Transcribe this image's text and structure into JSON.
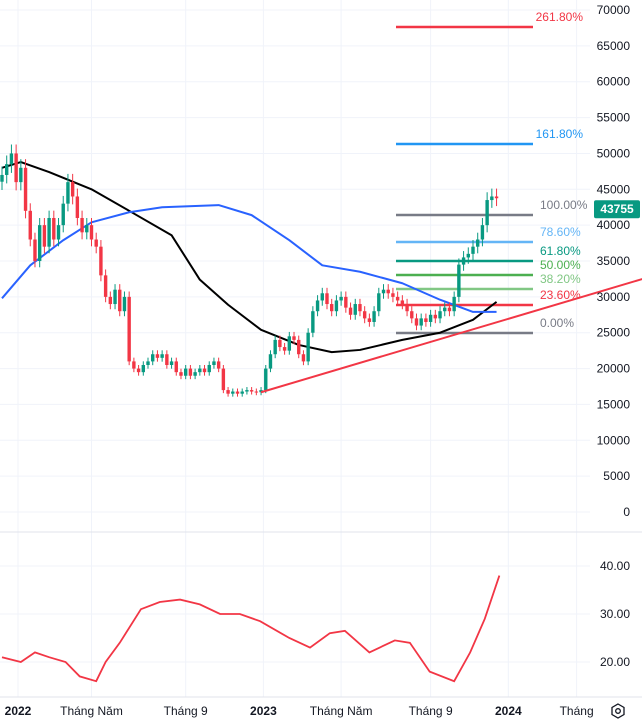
{
  "chart_data": {
    "type": "candlestick",
    "interval": "weekly",
    "price_axis": {
      "ticks": [
        0,
        5000,
        10000,
        15000,
        20000,
        25000,
        30000,
        35000,
        40000,
        45000,
        50000,
        55000,
        60000,
        65000,
        70000
      ],
      "range": [
        0,
        70000
      ]
    },
    "x_axis": {
      "labels": [
        {
          "text": "2022",
          "x": 3.4,
          "bold": true
        },
        {
          "text": "Tháng Năm",
          "x": 19
        },
        {
          "text": "Tháng 9",
          "x": 39
        },
        {
          "text": "2023",
          "x": 55.5,
          "bold": true
        },
        {
          "text": "Tháng Năm",
          "x": 72
        },
        {
          "text": "Tháng 9",
          "x": 91
        },
        {
          "text": "2024",
          "x": 107.5,
          "bold": true
        },
        {
          "text": "Tháng",
          "x": 122
        }
      ]
    },
    "closes": [
      47000,
      48500,
      50000,
      46000,
      48000,
      42000,
      38000,
      35000,
      40000,
      37000,
      41000,
      38000,
      40000,
      43000,
      46000,
      44000,
      41000,
      39000,
      40000,
      38000,
      37000,
      33000,
      30000,
      29000,
      31000,
      28000,
      30000,
      21000,
      20000,
      19500,
      20500,
      21000,
      22000,
      21500,
      22000,
      20500,
      21000,
      19500,
      19000,
      20000,
      19000,
      19500,
      20000,
      19500,
      20500,
      21000,
      20000,
      17000,
      16500,
      16800,
      16500,
      16800,
      17000,
      16800,
      16700,
      17000,
      20000,
      22000,
      24000,
      23000,
      22500,
      24500,
      24000,
      22000,
      21000,
      25000,
      28000,
      29500,
      30500,
      29000,
      28000,
      29500,
      30000,
      28500,
      27500,
      29000,
      28000,
      27000,
      26500,
      28000,
      30500,
      31000,
      30500,
      30000,
      29500,
      29000,
      28000,
      27000,
      26000,
      27000,
      26500,
      27500,
      27000,
      28000,
      28500,
      28000,
      30000,
      34500,
      35500,
      36000,
      37000,
      38000,
      40000,
      43500,
      44000,
      43755
    ],
    "last_price": {
      "value": "43755",
      "color": "#089981"
    },
    "colors": {
      "up": "#089981",
      "down": "#f23645"
    },
    "moving_averages": [
      {
        "color": "#000000",
        "points": [
          [
            0,
            48000
          ],
          [
            4,
            48800
          ],
          [
            10,
            47400
          ],
          [
            19,
            45000
          ],
          [
            27,
            42000
          ],
          [
            36,
            38600
          ],
          [
            42,
            32400
          ],
          [
            48,
            28900
          ],
          [
            55,
            25400
          ],
          [
            63,
            23300
          ],
          [
            70,
            22300
          ],
          [
            76,
            22600
          ],
          [
            85,
            24000
          ],
          [
            93,
            25000
          ],
          [
            100,
            26800
          ],
          [
            105,
            29300
          ]
        ]
      },
      {
        "color": "#2962ff",
        "points": [
          [
            0,
            29800
          ],
          [
            6,
            34400
          ],
          [
            13,
            37900
          ],
          [
            19,
            40400
          ],
          [
            27,
            41800
          ],
          [
            34,
            42500
          ],
          [
            46,
            42800
          ],
          [
            53,
            41400
          ],
          [
            61,
            37900
          ],
          [
            68,
            34400
          ],
          [
            76,
            33500
          ],
          [
            85,
            31900
          ],
          [
            93,
            29600
          ],
          [
            100,
            27900
          ],
          [
            105,
            27900
          ]
        ]
      }
    ],
    "trendline": {
      "color": "#f23645",
      "points": [
        [
          55,
          16700
        ],
        [
          136,
          32500
        ]
      ]
    },
    "fibonacci": [
      {
        "label": "0.00%",
        "value": 24960,
        "color": "#787b86"
      },
      {
        "label": "23.60%",
        "value": 28870,
        "color": "#f23645"
      },
      {
        "label": "38.20%",
        "value": 31100,
        "color": "#81c784"
      },
      {
        "label": "50.00%",
        "value": 33050,
        "color": "#4caf50"
      },
      {
        "label": "61.80%",
        "value": 35000,
        "color": "#089981"
      },
      {
        "label": "78.60%",
        "value": 37650,
        "color": "#64b5f6"
      },
      {
        "label": "100.00%",
        "value": 41420,
        "color": "#787b86"
      },
      {
        "label": "161.80%",
        "value": 51320,
        "color": "#2196f3"
      },
      {
        "label": "261.80%",
        "value": 67630,
        "color": "#f23645"
      }
    ],
    "indicator": {
      "color": "#f23645",
      "ticks": [
        "20.00",
        "30.00",
        "40.00"
      ],
      "points": [
        [
          0,
          21
        ],
        [
          4,
          20
        ],
        [
          7,
          22
        ],
        [
          10,
          21
        ],
        [
          13.5,
          20
        ],
        [
          16.5,
          17
        ],
        [
          20,
          16
        ],
        [
          22,
          20
        ],
        [
          25,
          24
        ],
        [
          29.5,
          31
        ],
        [
          33.5,
          32.5
        ],
        [
          37.8,
          33
        ],
        [
          42,
          32
        ],
        [
          46.3,
          30
        ],
        [
          50.5,
          30
        ],
        [
          54.8,
          28.5
        ],
        [
          61,
          25
        ],
        [
          65.4,
          23
        ],
        [
          69.6,
          26
        ],
        [
          72.8,
          26.5
        ],
        [
          78,
          22
        ],
        [
          83.4,
          24.5
        ],
        [
          86.6,
          24
        ],
        [
          90.8,
          18
        ],
        [
          96,
          16
        ],
        [
          99.4,
          22
        ],
        [
          102.5,
          29
        ],
        [
          105.6,
          38
        ]
      ]
    }
  },
  "icons": {
    "settings": "gear-icon"
  }
}
